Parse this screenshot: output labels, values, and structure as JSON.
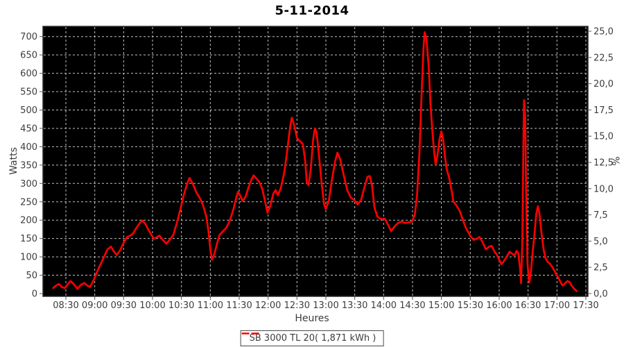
{
  "colors": {
    "outer_background": "#ffffff",
    "plot_background": "#000000",
    "gridline": "#c4c4c4",
    "series_line": "#ff0000",
    "tick_mark": "#555555",
    "tick_label": "#3c3c3c",
    "plot_border": "#2a2a2a",
    "title_text": "#000000"
  },
  "chart_data": {
    "type": "line",
    "title": "5-11-2014",
    "xlabel": "Heures",
    "ylabel_left": "Watts",
    "ylabel_right": "%",
    "grid": {
      "vertical": true,
      "horizontal": true,
      "style": "dashed"
    },
    "legend": {
      "position": "bottom-center",
      "label": "SB 3000 TL 20( 1,871 kWh )",
      "line_color": "#ff0000"
    },
    "x_axis": {
      "tick_labels": [
        "08:30",
        "09:00",
        "09:30",
        "10:00",
        "10:30",
        "11:00",
        "11:30",
        "12:00",
        "12:30",
        "13:00",
        "13:30",
        "14:00",
        "14:30",
        "15:00",
        "15:30",
        "16:00",
        "16:30",
        "17:00",
        "17:30"
      ],
      "tick_hours": [
        8.5,
        9,
        9.5,
        10,
        10.5,
        11,
        11.5,
        12,
        12.5,
        13,
        13.5,
        14,
        14.5,
        15,
        15.5,
        16,
        16.5,
        17,
        17.5
      ]
    },
    "y_axis_left": {
      "unit": "Watts",
      "tick_values": [
        0,
        50,
        100,
        150,
        200,
        250,
        300,
        350,
        400,
        450,
        500,
        550,
        600,
        650,
        700
      ],
      "tick_labels": [
        "0",
        "50",
        "100",
        "150",
        "200",
        "250",
        "300",
        "350",
        "400",
        "450",
        "500",
        "550",
        "600",
        "650",
        "700"
      ],
      "lim": [
        0,
        700
      ]
    },
    "y_axis_right": {
      "unit": "%",
      "tick_values": [
        0,
        2.5,
        5,
        7.5,
        10,
        12.5,
        15,
        17.5,
        20,
        22.5,
        25
      ],
      "tick_labels": [
        "0,0",
        "2,5",
        "5,0",
        "7,5",
        "10,0",
        "12,5",
        "15,0",
        "17,5",
        "20,0",
        "22,5",
        "25,0"
      ],
      "lim": [
        0,
        25
      ]
    },
    "series": [
      {
        "name": "SB 3000 TL 20( 1,871 kWh )",
        "color": "#ff0000",
        "points_hour_watts": [
          [
            8.28,
            15
          ],
          [
            8.33,
            22
          ],
          [
            8.38,
            26
          ],
          [
            8.43,
            18
          ],
          [
            8.48,
            15
          ],
          [
            8.53,
            25
          ],
          [
            8.58,
            34
          ],
          [
            8.63,
            27
          ],
          [
            8.7,
            13
          ],
          [
            8.76,
            24
          ],
          [
            8.82,
            29
          ],
          [
            8.87,
            22
          ],
          [
            8.92,
            18
          ],
          [
            8.96,
            30
          ],
          [
            9.0,
            44
          ],
          [
            9.05,
            62
          ],
          [
            9.1,
            80
          ],
          [
            9.16,
            100
          ],
          [
            9.22,
            120
          ],
          [
            9.28,
            128
          ],
          [
            9.33,
            115
          ],
          [
            9.38,
            105
          ],
          [
            9.44,
            118
          ],
          [
            9.5,
            138
          ],
          [
            9.56,
            154
          ],
          [
            9.62,
            158
          ],
          [
            9.67,
            165
          ],
          [
            9.71,
            176
          ],
          [
            9.77,
            190
          ],
          [
            9.82,
            199
          ],
          [
            9.87,
            191
          ],
          [
            9.95,
            168
          ],
          [
            10.02,
            149
          ],
          [
            10.07,
            153
          ],
          [
            10.12,
            158
          ],
          [
            10.18,
            146
          ],
          [
            10.24,
            136
          ],
          [
            10.3,
            147
          ],
          [
            10.36,
            160
          ],
          [
            10.42,
            192
          ],
          [
            10.48,
            228
          ],
          [
            10.54,
            268
          ],
          [
            10.6,
            300
          ],
          [
            10.64,
            315
          ],
          [
            10.7,
            298
          ],
          [
            10.76,
            275
          ],
          [
            10.82,
            260
          ],
          [
            10.88,
            238
          ],
          [
            10.93,
            210
          ],
          [
            10.97,
            168
          ],
          [
            11.0,
            120
          ],
          [
            11.03,
            92
          ],
          [
            11.07,
            108
          ],
          [
            11.12,
            138
          ],
          [
            11.16,
            160
          ],
          [
            11.22,
            170
          ],
          [
            11.28,
            180
          ],
          [
            11.34,
            200
          ],
          [
            11.4,
            230
          ],
          [
            11.45,
            262
          ],
          [
            11.48,
            277
          ],
          [
            11.52,
            266
          ],
          [
            11.56,
            252
          ],
          [
            11.61,
            264
          ],
          [
            11.66,
            288
          ],
          [
            11.71,
            310
          ],
          [
            11.75,
            322
          ],
          [
            11.8,
            313
          ],
          [
            11.85,
            303
          ],
          [
            11.9,
            285
          ],
          [
            11.95,
            250
          ],
          [
            11.99,
            220
          ],
          [
            12.04,
            240
          ],
          [
            12.09,
            272
          ],
          [
            12.13,
            282
          ],
          [
            12.17,
            268
          ],
          [
            12.22,
            287
          ],
          [
            12.28,
            330
          ],
          [
            12.33,
            388
          ],
          [
            12.38,
            452
          ],
          [
            12.41,
            479
          ],
          [
            12.45,
            460
          ],
          [
            12.5,
            424
          ],
          [
            12.55,
            415
          ],
          [
            12.6,
            408
          ],
          [
            12.64,
            365
          ],
          [
            12.67,
            302
          ],
          [
            12.7,
            295
          ],
          [
            12.74,
            340
          ],
          [
            12.78,
            420
          ],
          [
            12.81,
            450
          ],
          [
            12.84,
            438
          ],
          [
            12.88,
            378
          ],
          [
            12.93,
            295
          ],
          [
            12.97,
            242
          ],
          [
            13.0,
            230
          ],
          [
            13.05,
            252
          ],
          [
            13.1,
            305
          ],
          [
            13.16,
            360
          ],
          [
            13.2,
            384
          ],
          [
            13.25,
            365
          ],
          [
            13.31,
            322
          ],
          [
            13.37,
            282
          ],
          [
            13.43,
            262
          ],
          [
            13.49,
            255
          ],
          [
            13.55,
            243
          ],
          [
            13.61,
            255
          ],
          [
            13.66,
            285
          ],
          [
            13.72,
            318
          ],
          [
            13.76,
            320
          ],
          [
            13.8,
            294
          ],
          [
            13.84,
            235
          ],
          [
            13.89,
            210
          ],
          [
            13.95,
            203
          ],
          [
            14.02,
            204
          ],
          [
            14.08,
            186
          ],
          [
            14.13,
            170
          ],
          [
            14.19,
            183
          ],
          [
            14.25,
            192
          ],
          [
            14.31,
            196
          ],
          [
            14.37,
            192
          ],
          [
            14.43,
            194
          ],
          [
            14.49,
            196
          ],
          [
            14.54,
            215
          ],
          [
            14.58,
            270
          ],
          [
            14.62,
            385
          ],
          [
            14.66,
            555
          ],
          [
            14.69,
            668
          ],
          [
            14.71,
            712
          ],
          [
            14.74,
            695
          ],
          [
            14.78,
            620
          ],
          [
            14.81,
            518
          ],
          [
            14.85,
            430
          ],
          [
            14.88,
            378
          ],
          [
            14.9,
            352
          ],
          [
            14.93,
            375
          ],
          [
            14.97,
            422
          ],
          [
            15.0,
            442
          ],
          [
            15.03,
            420
          ],
          [
            15.06,
            376
          ],
          [
            15.09,
            340
          ],
          [
            15.14,
            312
          ],
          [
            15.18,
            278
          ],
          [
            15.21,
            250
          ],
          [
            15.26,
            240
          ],
          [
            15.32,
            224
          ],
          [
            15.36,
            206
          ],
          [
            15.42,
            180
          ],
          [
            15.5,
            157
          ],
          [
            15.56,
            146
          ],
          [
            15.62,
            150
          ],
          [
            15.66,
            154
          ],
          [
            15.72,
            138
          ],
          [
            15.77,
            120
          ],
          [
            15.82,
            127
          ],
          [
            15.87,
            130
          ],
          [
            15.92,
            114
          ],
          [
            15.96,
            106
          ],
          [
            16.0,
            92
          ],
          [
            16.04,
            80
          ],
          [
            16.08,
            88
          ],
          [
            16.13,
            100
          ],
          [
            16.18,
            114
          ],
          [
            16.23,
            108
          ],
          [
            16.27,
            104
          ],
          [
            16.3,
            116
          ],
          [
            16.33,
            110
          ],
          [
            16.36,
            70
          ],
          [
            16.38,
            28
          ],
          [
            16.4,
            140
          ],
          [
            16.42,
            420
          ],
          [
            16.43,
            527
          ],
          [
            16.45,
            480
          ],
          [
            16.47,
            250
          ],
          [
            16.49,
            80
          ],
          [
            16.52,
            30
          ],
          [
            16.55,
            60
          ],
          [
            16.58,
            115
          ],
          [
            16.61,
            160
          ],
          [
            16.64,
            215
          ],
          [
            16.67,
            238
          ],
          [
            16.7,
            215
          ],
          [
            16.73,
            168
          ],
          [
            16.77,
            120
          ],
          [
            16.8,
            97
          ],
          [
            16.84,
            86
          ],
          [
            16.88,
            81
          ],
          [
            16.92,
            72
          ],
          [
            16.97,
            58
          ],
          [
            17.02,
            44
          ],
          [
            17.07,
            29
          ],
          [
            17.1,
            22
          ],
          [
            17.14,
            28
          ],
          [
            17.18,
            34
          ],
          [
            17.22,
            31
          ],
          [
            17.26,
            20
          ],
          [
            17.3,
            13
          ],
          [
            17.34,
            7
          ]
        ]
      }
    ]
  }
}
